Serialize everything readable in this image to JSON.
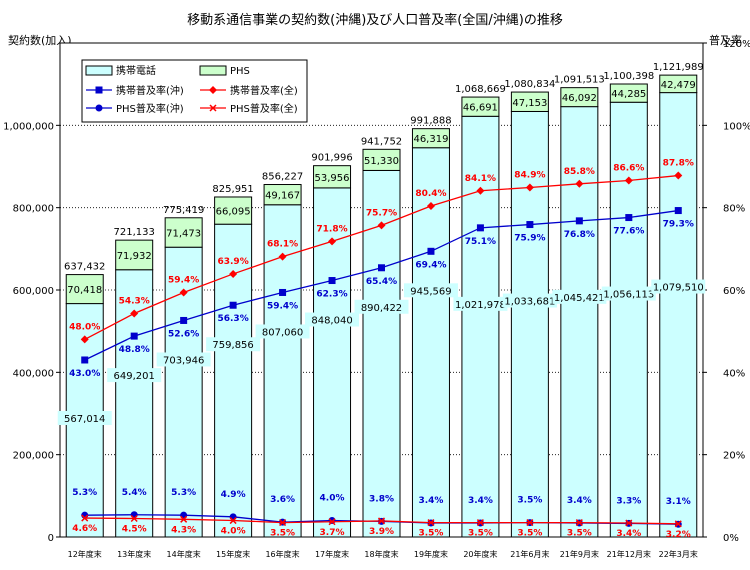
{
  "chart_data": {
    "type": "bar",
    "title": "移動系通信事業の契約数(沖縄)及び人口普及率(全国/沖縄)の推移",
    "ylabel": "契約数(加入)",
    "y2label": "普及率",
    "ylim": [
      0,
      1200000
    ],
    "y2lim": [
      0,
      120
    ],
    "yticks": [
      "0",
      "200,000",
      "400,000",
      "600,000",
      "800,000",
      "1,000,000"
    ],
    "y2ticks": [
      "0%",
      "20%",
      "40%",
      "60%",
      "80%",
      "100%",
      "120%"
    ],
    "grid": true,
    "legend_position": "top-left",
    "categories": [
      "12年度末",
      "13年度末",
      "14年度末",
      "15年度末",
      "16年度末",
      "17年度末",
      "18年度末",
      "19年度末",
      "20年度末",
      "21年6月末",
      "21年9月末",
      "21年12月末",
      "22年3月末"
    ],
    "bar_series": [
      {
        "name": "携帯電話",
        "color": "#ccffff",
        "values": [
          567014,
          649201,
          703946,
          759856,
          807060,
          848040,
          890422,
          945569,
          1021978,
          1033681,
          1045421,
          1056113,
          1079510
        ],
        "labels": [
          "567,014",
          "649,201",
          "703,946",
          "759,856",
          "807,060",
          "848,040",
          "890,422",
          "945,569",
          "1,021,978",
          "1,033,681",
          "1,045,421",
          "1,056,113",
          "1,079,510"
        ]
      },
      {
        "name": "PHS",
        "color": "#ccffcc",
        "values": [
          70418,
          71932,
          71473,
          66095,
          49167,
          53956,
          51330,
          46319,
          46691,
          47153,
          46092,
          44285,
          42479
        ],
        "labels": [
          "70,418",
          "71,932",
          "71,473",
          "66,095",
          "49,167",
          "53,956",
          "51,330",
          "46,319",
          "46,691",
          "47,153",
          "46,092",
          "44,285",
          "42,479"
        ]
      }
    ],
    "totals": {
      "values": [
        637432,
        721133,
        775419,
        825951,
        856227,
        901996,
        941752,
        991888,
        1068669,
        1080834,
        1091513,
        1100398,
        1121989
      ],
      "labels": [
        "637,432",
        "721,133",
        "775,419",
        "825,951",
        "856,227",
        "901,996",
        "941,752",
        "991,888",
        "1,068,669",
        "1,080,834",
        "1,091,513",
        "1,100,398",
        "1,121,989"
      ]
    },
    "line_series": [
      {
        "name": "携帯普及率(全)",
        "color": "#ff0000",
        "marker": "diamond",
        "values": [
          48.0,
          54.3,
          59.4,
          63.9,
          68.1,
          71.8,
          75.7,
          80.4,
          84.1,
          84.9,
          85.8,
          86.6,
          87.8
        ],
        "labels": [
          "48.0%",
          "54.3%",
          "59.4%",
          "63.9%",
          "68.1%",
          "71.8%",
          "75.7%",
          "80.4%",
          "84.1%",
          "84.9%",
          "85.8%",
          "86.6%",
          "87.8%"
        ]
      },
      {
        "name": "携帯普及率(沖)",
        "color": "#0000cc",
        "marker": "square",
        "values": [
          43.0,
          48.8,
          52.6,
          56.3,
          59.4,
          62.3,
          65.4,
          69.4,
          75.1,
          75.9,
          76.8,
          77.6,
          79.3
        ],
        "labels": [
          "43.0%",
          "48.8%",
          "52.6%",
          "56.3%",
          "59.4%",
          "62.3%",
          "65.4%",
          "69.4%",
          "75.1%",
          "75.9%",
          "76.8%",
          "77.6%",
          "79.3%"
        ]
      },
      {
        "name": "PHS普及率(沖)",
        "color": "#0000cc",
        "marker": "circle",
        "values": [
          5.3,
          5.4,
          5.3,
          4.9,
          3.6,
          4.0,
          3.8,
          3.4,
          3.4,
          3.5,
          3.4,
          3.3,
          3.1
        ],
        "labels": [
          "5.3%",
          "5.4%",
          "5.3%",
          "4.9%",
          "3.6%",
          "4.0%",
          "3.8%",
          "3.4%",
          "3.4%",
          "3.5%",
          "3.4%",
          "3.3%",
          "3.1%"
        ]
      },
      {
        "name": "PHS普及率(全)",
        "color": "#ff0000",
        "marker": "x",
        "values": [
          4.6,
          4.5,
          4.3,
          4.0,
          3.5,
          3.7,
          3.9,
          3.5,
          3.5,
          3.5,
          3.5,
          3.4,
          3.2
        ],
        "labels": [
          "4.6%",
          "4.5%",
          "4.3%",
          "4.0%",
          "3.5%",
          "3.7%",
          "3.9%",
          "3.5%",
          "3.5%",
          "3.5%",
          "3.5%",
          "3.4%",
          "3.2%"
        ]
      }
    ],
    "legend": [
      "携帯電話",
      "PHS",
      "携帯普及率(沖)",
      "携帯普及率(全)",
      "PHS普及率(沖)",
      "PHS普及率(全)"
    ]
  }
}
